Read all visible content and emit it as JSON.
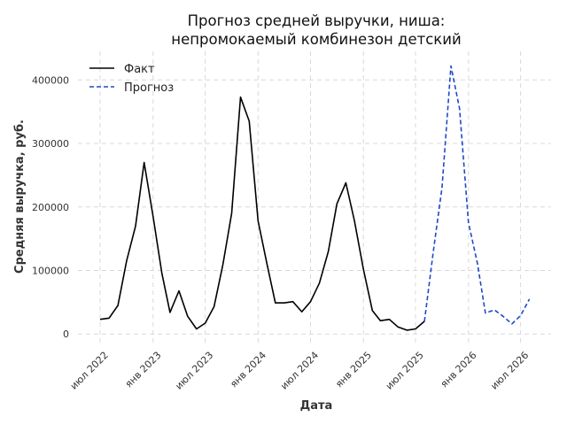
{
  "chart_data": {
    "type": "line",
    "title_lines": [
      "Прогноз средней выручки, ниша:",
      "непромокаемый комбинезон детский"
    ],
    "xlabel": "Дата",
    "ylabel": "Средняя выручка, руб.",
    "x_ticks": [
      {
        "date": "2022-07-01",
        "label": "июл 2022"
      },
      {
        "date": "2023-01-01",
        "label": "янв 2023"
      },
      {
        "date": "2023-07-01",
        "label": "июл 2023"
      },
      {
        "date": "2024-01-01",
        "label": "янв 2024"
      },
      {
        "date": "2024-07-01",
        "label": "июл 2024"
      },
      {
        "date": "2025-01-01",
        "label": "янв 2025"
      },
      {
        "date": "2025-07-01",
        "label": "июл 2025"
      },
      {
        "date": "2026-01-01",
        "label": "янв 2026"
      },
      {
        "date": "2026-07-01",
        "label": "июл 2026"
      }
    ],
    "y_ticks": [
      0,
      100000,
      200000,
      300000,
      400000
    ],
    "xlim": [
      "2022-04-15",
      "2026-10-15"
    ],
    "ylim": [
      -15000,
      445000
    ],
    "grid": true,
    "legend_position": "top-left",
    "series": [
      {
        "name": "Факт",
        "color": "#000000",
        "dash": "solid",
        "x": [
          "2022-07-01",
          "2022-08-01",
          "2022-09-01",
          "2022-10-01",
          "2022-11-01",
          "2022-12-01",
          "2023-01-01",
          "2023-02-01",
          "2023-03-01",
          "2023-04-01",
          "2023-05-01",
          "2023-06-01",
          "2023-07-01",
          "2023-08-01",
          "2023-09-01",
          "2023-10-01",
          "2023-11-01",
          "2023-12-01",
          "2024-01-01",
          "2024-02-01",
          "2024-03-01",
          "2024-04-01",
          "2024-05-01",
          "2024-06-01",
          "2024-07-01",
          "2024-08-01",
          "2024-09-01",
          "2024-10-01",
          "2024-11-01",
          "2024-12-01",
          "2025-01-01",
          "2025-02-01",
          "2025-03-01",
          "2025-04-01",
          "2025-05-01",
          "2025-06-01",
          "2025-07-01",
          "2025-08-01"
        ],
        "y": [
          23000,
          25000,
          45000,
          115000,
          170000,
          270000,
          185000,
          95000,
          34000,
          68000,
          28000,
          8000,
          17000,
          43000,
          110000,
          190000,
          373000,
          335000,
          178000,
          110000,
          49000,
          49000,
          51000,
          35000,
          51000,
          80000,
          130000,
          205000,
          238000,
          178000,
          102000,
          37000,
          21000,
          23000,
          11000,
          6000,
          8000,
          20000
        ]
      },
      {
        "name": "Прогноз",
        "color": "#1f49c8",
        "dash": "dashed",
        "x": [
          "2025-08-01",
          "2025-09-01",
          "2025-10-01",
          "2025-11-01",
          "2025-12-01",
          "2026-01-01",
          "2026-02-01",
          "2026-03-01",
          "2026-04-01",
          "2026-05-01",
          "2026-06-01",
          "2026-07-01",
          "2026-08-01"
        ],
        "y": [
          20000,
          130000,
          230000,
          422000,
          355000,
          175000,
          112000,
          33000,
          38000,
          28000,
          16000,
          29000,
          55000
        ]
      }
    ]
  }
}
